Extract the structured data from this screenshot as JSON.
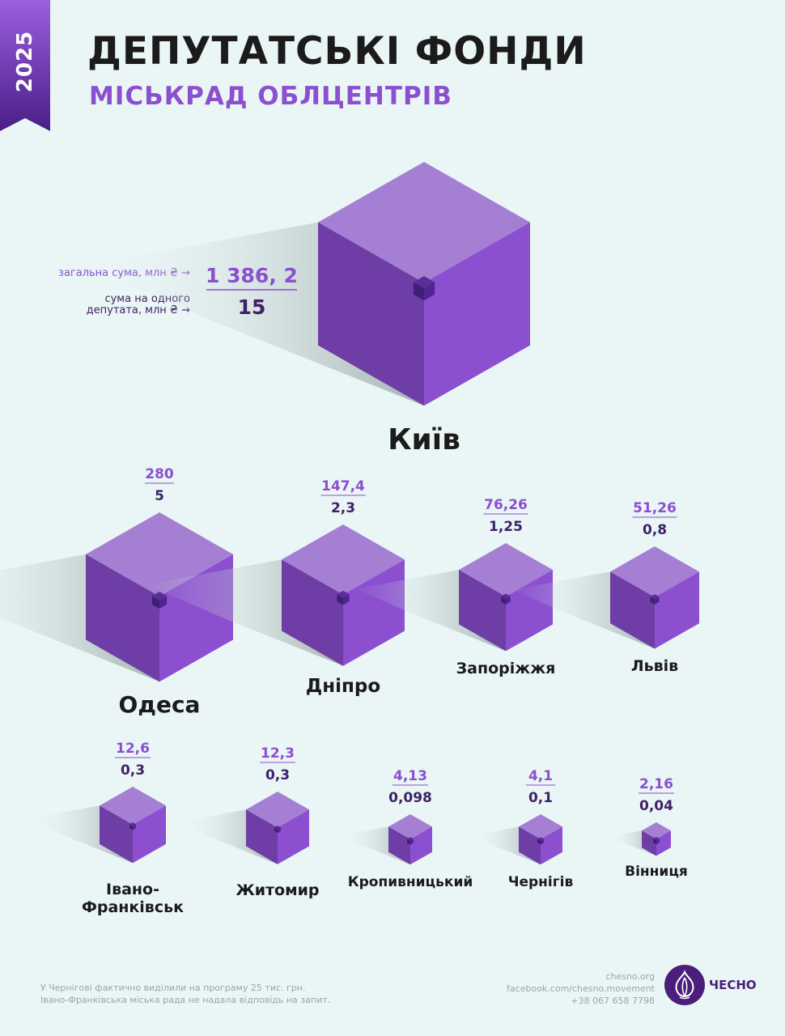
{
  "header": {
    "year": "2025",
    "title": "ДЕПУТАТСЬКІ ФОНДИ",
    "subtitle": "МІСЬКРАД ОБЛЦЕНТРІВ"
  },
  "legend": {
    "total_label": "загальна сума, млн ₴ →",
    "per_deputy_label_line1": "сума на одного",
    "per_deputy_label_line2": "депутата, млн ₴ →"
  },
  "colors": {
    "accent": "#8b4fcf",
    "dark_purple": "#3f2168",
    "cube_top": "#a47fd3",
    "cube_left": "#6e3da6",
    "cube_right": "#8b4fcf",
    "background": "#eaf6f5"
  },
  "chart_data": {
    "type": "bar",
    "categories": [
      "Київ",
      "Одеса",
      "Дніпро",
      "Запоріжжя",
      "Львів",
      "Івано-Франківськ",
      "Житомир",
      "Кропивницький",
      "Чернігів",
      "Вінниця"
    ],
    "series": [
      {
        "name": "загальна сума, млн ₴",
        "values": [
          1386.2,
          280,
          147.4,
          76.26,
          51.26,
          12.6,
          12.3,
          4.13,
          4.1,
          2.16
        ]
      },
      {
        "name": "сума на одного депутата, млн ₴",
        "values": [
          15,
          5,
          2.3,
          1.25,
          0.8,
          0.3,
          0.3,
          0.098,
          0.1,
          0.04
        ]
      }
    ],
    "items": [
      {
        "city": "Київ",
        "city_lines": [
          "Київ"
        ],
        "total": 1386.2,
        "total_label": "1 386, 2",
        "per_deputy": 15,
        "per_deputy_label": "15"
      },
      {
        "city": "Одеса",
        "city_lines": [
          "Одеса"
        ],
        "total": 280,
        "total_label": "280",
        "per_deputy": 5,
        "per_deputy_label": "5"
      },
      {
        "city": "Дніпро",
        "city_lines": [
          "Дніпро"
        ],
        "total": 147.4,
        "total_label": "147,4",
        "per_deputy": 2.3,
        "per_deputy_label": "2,3"
      },
      {
        "city": "Запоріжжя",
        "city_lines": [
          "Запоріжжя"
        ],
        "total": 76.26,
        "total_label": "76,26",
        "per_deputy": 1.25,
        "per_deputy_label": "1,25"
      },
      {
        "city": "Львів",
        "city_lines": [
          "Львів"
        ],
        "total": 51.26,
        "total_label": "51,26",
        "per_deputy": 0.8,
        "per_deputy_label": "0,8"
      },
      {
        "city": "Івано-Франківськ",
        "city_lines": [
          "Івано-",
          "Франківськ"
        ],
        "total": 12.6,
        "total_label": "12,6",
        "per_deputy": 0.3,
        "per_deputy_label": "0,3"
      },
      {
        "city": "Житомир",
        "city_lines": [
          "Житомир"
        ],
        "total": 12.3,
        "total_label": "12,3",
        "per_deputy": 0.3,
        "per_deputy_label": "0,3"
      },
      {
        "city": "Кропивницький",
        "city_lines": [
          "Кропивницький"
        ],
        "total": 4.13,
        "total_label": "4,13",
        "per_deputy": 0.098,
        "per_deputy_label": "0,098"
      },
      {
        "city": "Чернігів",
        "city_lines": [
          "Чернігів"
        ],
        "total": 4.1,
        "total_label": "4,1",
        "per_deputy": 0.1,
        "per_deputy_label": "0,1"
      },
      {
        "city": "Вінниця",
        "city_lines": [
          "Вінниця"
        ],
        "total": 2.16,
        "total_label": "2,16",
        "per_deputy": 0.04,
        "per_deputy_label": "0,04"
      }
    ]
  },
  "footer": {
    "note_line1": "У Чернігові фактично виділили на програму 25 тис. грн.",
    "note_line2": "Івано-Франківська міська рада не надала відповідь на запит.",
    "website": "chesno.org",
    "facebook": "facebook.com/chesno.movement",
    "phone": "+38 067 658 7798",
    "logo_text": "ЧЕСНО",
    "logo_icon": "garlic-icon"
  }
}
